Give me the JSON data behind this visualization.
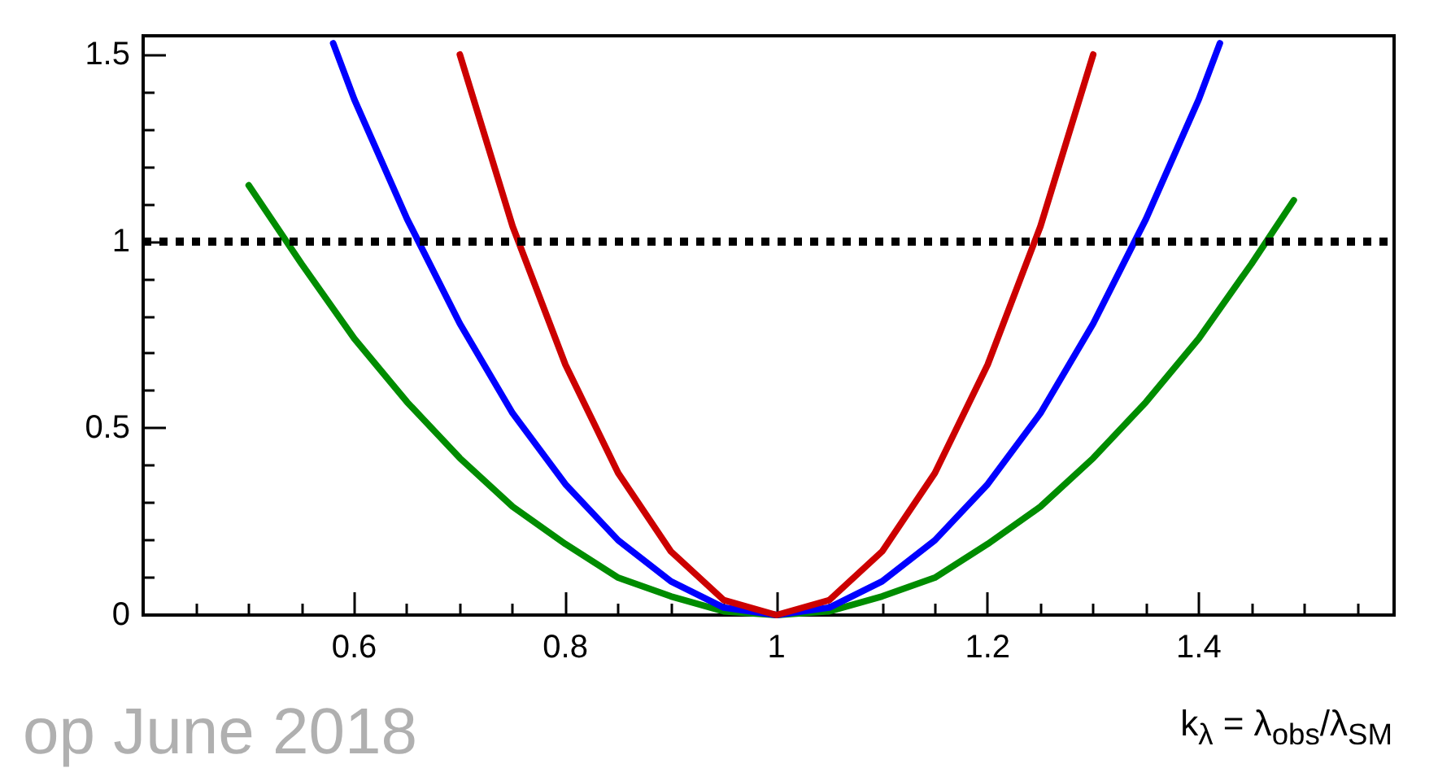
{
  "chart_data": {
    "type": "line",
    "xlabel": "k$_{λ}$ = λ$_{obs}$/λ$_{SM}$",
    "xlim": [
      0.4,
      1.585
    ],
    "xticks": [
      0.6,
      0.8,
      1,
      1.2,
      1.4
    ],
    "ylim": [
      0,
      1.55
    ],
    "yticks": [
      0,
      0.5,
      1,
      1.5
    ],
    "grid": false,
    "marker": "none",
    "line_style": "solid",
    "series": [
      {
        "color": "#008c00",
        "x": [
          0.5,
          0.55,
          0.6,
          0.65,
          0.7,
          0.75,
          0.8,
          0.85,
          0.9,
          0.95,
          1,
          1.05,
          1.1,
          1.15,
          1.2,
          1.25,
          1.3,
          1.35,
          1.4,
          1.45,
          1.49
        ],
        "values": [
          1.15,
          0.94,
          0.74,
          0.57,
          0.42,
          0.29,
          0.19,
          0.1,
          0.05,
          0.01,
          0,
          0.01,
          0.05,
          0.1,
          0.19,
          0.29,
          0.42,
          0.57,
          0.74,
          0.94,
          1.11
        ]
      },
      {
        "color": "#0000ff",
        "x": [
          0.58,
          0.6,
          0.65,
          0.7,
          0.75,
          0.8,
          0.85,
          0.9,
          0.95,
          1,
          1.05,
          1.1,
          1.15,
          1.2,
          1.25,
          1.3,
          1.35,
          1.4,
          1.42
        ],
        "values": [
          1.53,
          1.38,
          1.06,
          0.78,
          0.54,
          0.35,
          0.2,
          0.09,
          0.02,
          0,
          0.02,
          0.09,
          0.2,
          0.35,
          0.54,
          0.78,
          1.06,
          1.38,
          1.53
        ]
      },
      {
        "color": "#cc0000",
        "x": [
          0.7,
          0.75,
          0.8,
          0.85,
          0.9,
          0.95,
          1,
          1.05,
          1.1,
          1.15,
          1.2,
          1.25,
          1.3
        ],
        "values": [
          1.5,
          1.04,
          0.67,
          0.38,
          0.17,
          0.04,
          0,
          0.04,
          0.17,
          0.38,
          0.67,
          1.04,
          1.5
        ]
      }
    ],
    "ref_lines": [
      {
        "axis": "y",
        "value": 1,
        "color": "#000000",
        "line_style": "dotted"
      }
    ],
    "annotations": [
      "op June 2018"
    ]
  }
}
